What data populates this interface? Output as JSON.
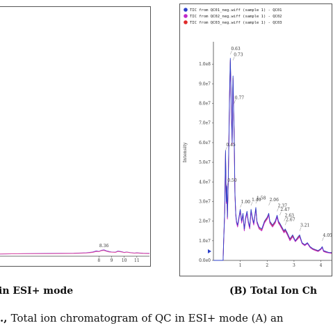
{
  "chart_data": [
    {
      "panel": "A",
      "type": "line",
      "title": "",
      "xlabel": "",
      "ylabel": "",
      "xlim": [
        0,
        12
      ],
      "ylim": [
        0,
        11
      ],
      "x_ticks": [
        8,
        9,
        10,
        11
      ],
      "peak_labels": [
        {
          "x": 8.4,
          "y": 0.35,
          "text": "8.36"
        }
      ],
      "series": [
        {
          "color": "#7a3fd6",
          "x": [
            0,
            2,
            4,
            6,
            7.0,
            7.5,
            7.8,
            8.0,
            8.2,
            8.4,
            8.6,
            8.8,
            9.0,
            9.3,
            9.5,
            9.8,
            10.0,
            10.2,
            10.5,
            10.8,
            11.0,
            11.5,
            12
          ],
          "y": [
            0.1,
            0.12,
            0.13,
            0.14,
            0.16,
            0.2,
            0.25,
            0.22,
            0.28,
            0.3,
            0.25,
            0.22,
            0.2,
            0.19,
            0.24,
            0.21,
            0.18,
            0.2,
            0.17,
            0.15,
            0.16,
            0.14,
            0.13
          ]
        },
        {
          "color": "#e0459a",
          "x": [
            0,
            2,
            4,
            6,
            7.0,
            7.5,
            7.8,
            8.0,
            8.2,
            8.4,
            8.6,
            8.8,
            9.0,
            9.3,
            9.5,
            9.8,
            10.0,
            10.2,
            10.5,
            10.8,
            11.0,
            11.5,
            12
          ],
          "y": [
            0.1,
            0.12,
            0.12,
            0.13,
            0.15,
            0.18,
            0.22,
            0.21,
            0.26,
            0.27,
            0.23,
            0.2,
            0.19,
            0.18,
            0.22,
            0.2,
            0.17,
            0.19,
            0.16,
            0.14,
            0.15,
            0.13,
            0.12
          ]
        }
      ]
    },
    {
      "panel": "B",
      "type": "line",
      "title": "",
      "xlabel": "",
      "ylabel": "Intensity",
      "xlim": [
        0,
        4.4
      ],
      "ylim": [
        0,
        110000000.0
      ],
      "y_tick_labels": [
        "0.0e0",
        "1.0e7",
        "2.0e7",
        "3.0e7",
        "4.0e7",
        "5.0e7",
        "6.0e7",
        "7.0e7",
        "8.0e7",
        "9.0e7",
        "1.0e8"
      ],
      "y_tick_values": [
        0,
        10000000.0,
        20000000.0,
        30000000.0,
        40000000.0,
        50000000.0,
        60000000.0,
        70000000.0,
        80000000.0,
        90000000.0,
        100000000.0
      ],
      "x_tick_labels": [
        "1",
        "2",
        "3",
        "4"
      ],
      "x_tick_values": [
        1,
        2,
        3,
        4
      ],
      "legend": [
        {
          "text": "TIC from QC01_neg.wiff (sample 1) - QC01",
          "color": "#2b3fc9"
        },
        {
          "text": "TIC from QC02_neg.wiff (sample 1) - QC02",
          "color": "#c028c9"
        },
        {
          "text": "TIC from QC03_neg.wiff (sample 1) - QC03",
          "color": "#e02a2a"
        }
      ],
      "peak_labels": [
        {
          "x": 0.63,
          "y": 105000000.0,
          "text": "0.63"
        },
        {
          "x": 0.73,
          "y": 102000000.0,
          "text": "0.73"
        },
        {
          "x": 0.77,
          "y": 80000000.0,
          "text": "0.77"
        },
        {
          "x": 0.45,
          "y": 56000000.0,
          "text": "0.45"
        },
        {
          "x": 0.5,
          "y": 38000000.0,
          "text": "0.50"
        },
        {
          "x": 1.0,
          "y": 27000000.0,
          "text": "1.00"
        },
        {
          "x": 1.4,
          "y": 28000000.0,
          "text": "1.40"
        },
        {
          "x": 1.58,
          "y": 29000000.0,
          "text": "1.58"
        },
        {
          "x": 2.06,
          "y": 28000000.0,
          "text": "2.06"
        },
        {
          "x": 2.37,
          "y": 25000000.0,
          "text": "2.37"
        },
        {
          "x": 2.47,
          "y": 23000000.0,
          "text": "2.47"
        },
        {
          "x": 2.63,
          "y": 20000000.0,
          "text": "2.63"
        },
        {
          "x": 2.67,
          "y": 18000000.0,
          "text": "2.67"
        },
        {
          "x": 3.21,
          "y": 15000000.0,
          "text": "3.21"
        },
        {
          "x": 4.05,
          "y": 10000000.0,
          "text": "4.05"
        }
      ],
      "series": [
        {
          "name": "QC01",
          "color": "#2b3fc9",
          "x": [
            0,
            0.3,
            0.36,
            0.38,
            0.42,
            0.45,
            0.48,
            0.5,
            0.52,
            0.55,
            0.58,
            0.6,
            0.62,
            0.63,
            0.65,
            0.67,
            0.7,
            0.72,
            0.73,
            0.75,
            0.77,
            0.8,
            0.83,
            0.86,
            0.9,
            0.95,
            1.0,
            1.05,
            1.1,
            1.15,
            1.2,
            1.25,
            1.3,
            1.35,
            1.4,
            1.45,
            1.5,
            1.55,
            1.58,
            1.62,
            1.7,
            1.8,
            1.9,
            2.0,
            2.06,
            2.1,
            2.2,
            2.3,
            2.37,
            2.42,
            2.47,
            2.55,
            2.63,
            2.67,
            2.75,
            2.85,
            2.95,
            3.05,
            3.15,
            3.21,
            3.3,
            3.4,
            3.5,
            3.6,
            3.7,
            3.8,
            3.9,
            4.0,
            4.05,
            4.1,
            4.2,
            4.3,
            4.4
          ],
          "y": [
            0,
            0,
            0,
            10000000.0,
            25000000.0,
            56000000.0,
            30000000.0,
            38000000.0,
            22000000.0,
            40000000.0,
            65000000.0,
            85000000.0,
            98000000.0,
            103000000.0,
            90000000.0,
            75000000.0,
            60000000.0,
            88000000.0,
            94000000.0,
            78000000.0,
            65000000.0,
            35000000.0,
            24000000.0,
            20000000.0,
            18000000.0,
            22000000.0,
            26000000.0,
            20000000.0,
            24000000.0,
            16000000.0,
            22000000.0,
            25000000.0,
            20000000.0,
            17000000.0,
            26000000.0,
            22000000.0,
            19000000.0,
            24000000.0,
            27000000.0,
            20000000.0,
            17000000.0,
            16000000.0,
            20000000.0,
            22000000.0,
            24000000.0,
            20000000.0,
            18000000.0,
            20000000.0,
            23000000.0,
            20000000.0,
            19000000.0,
            17000000.0,
            15000000.0,
            16000000.0,
            14000000.0,
            11000000.0,
            13000000.0,
            10000000.0,
            12000000.0,
            13000000.0,
            9000000.0,
            8000000.0,
            9000000.0,
            7000000.0,
            6000000.0,
            5500000.0,
            5000000.0,
            6000000.0,
            7000000.0,
            5000000.0,
            4500000.0,
            4000000.0,
            4000000.0
          ]
        },
        {
          "name": "QC02",
          "color": "#c028c9",
          "x": [
            0,
            0.3,
            0.36,
            0.38,
            0.42,
            0.45,
            0.48,
            0.5,
            0.52,
            0.55,
            0.58,
            0.6,
            0.62,
            0.63,
            0.65,
            0.67,
            0.7,
            0.72,
            0.73,
            0.75,
            0.77,
            0.8,
            0.83,
            0.86,
            0.9,
            0.95,
            1.0,
            1.05,
            1.1,
            1.15,
            1.2,
            1.25,
            1.3,
            1.35,
            1.4,
            1.45,
            1.5,
            1.55,
            1.58,
            1.62,
            1.7,
            1.8,
            1.9,
            2.0,
            2.06,
            2.1,
            2.2,
            2.3,
            2.37,
            2.42,
            2.47,
            2.55,
            2.63,
            2.67,
            2.75,
            2.85,
            2.95,
            3.05,
            3.15,
            3.21,
            3.3,
            3.4,
            3.5,
            3.6,
            3.7,
            3.8,
            3.9,
            4.0,
            4.05,
            4.1,
            4.2,
            4.3,
            4.4
          ],
          "y": [
            0,
            0,
            0,
            9000000.0,
            24000000.0,
            54000000.0,
            29000000.0,
            37000000.0,
            21000000.0,
            39000000.0,
            63000000.0,
            83000000.0,
            96000000.0,
            101000000.0,
            88000000.0,
            73000000.0,
            59000000.0,
            86000000.0,
            92000000.0,
            76000000.0,
            64000000.0,
            34000000.0,
            23000000.0,
            19000000.0,
            17000000.0,
            21000000.0,
            25000000.0,
            19000000.0,
            23000000.0,
            15000000.0,
            21000000.0,
            24000000.0,
            19000000.0,
            16000000.0,
            25000000.0,
            21000000.0,
            18000000.0,
            23000000.0,
            26000000.0,
            19000000.0,
            16000000.0,
            15000000.0,
            19000000.0,
            21000000.0,
            23000000.0,
            19000000.0,
            17000000.0,
            19000000.0,
            22000000.0,
            19000000.0,
            18000000.0,
            16000000.0,
            14000000.0,
            15000000.0,
            13000000.0,
            10000000.0,
            12000000.0,
            9500000.0,
            11000000.0,
            12000000.0,
            8500000.0,
            7500000.0,
            8500000.0,
            6500000.0,
            5500000.0,
            5000000.0,
            4500000.0,
            5500000.0,
            6500000.0,
            4500000.0,
            4000000.0,
            3800000.0,
            3600000.0
          ]
        },
        {
          "name": "QC03",
          "color": "#e02a2a",
          "x": [
            0,
            0.3,
            0.36,
            0.38,
            0.42,
            0.45,
            0.48,
            0.5,
            0.52,
            0.55,
            0.58,
            0.6,
            0.62,
            0.63,
            0.65,
            0.67,
            0.7,
            0.72,
            0.73,
            0.75,
            0.77,
            0.8,
            0.83,
            0.86,
            0.9,
            0.95,
            1.0,
            1.05,
            1.1,
            1.15,
            1.2,
            1.25,
            1.3,
            1.35,
            1.4,
            1.45,
            1.5,
            1.55,
            1.58,
            1.62,
            1.7,
            1.8,
            1.9,
            2.0,
            2.06,
            2.1,
            2.2,
            2.3,
            2.37,
            2.42,
            2.47,
            2.55,
            2.63,
            2.67,
            2.75,
            2.85,
            2.95,
            3.05,
            3.15,
            3.21,
            3.3,
            3.4,
            3.5,
            3.6,
            3.7,
            3.8,
            3.9,
            4.0,
            4.05,
            4.1,
            4.2,
            4.3,
            4.4
          ],
          "y": [
            0,
            0,
            0,
            9500000.0,
            24500000.0,
            55000000.0,
            29500000.0,
            37500000.0,
            21500000.0,
            39500000.0,
            64000000.0,
            84000000.0,
            97000000.0,
            102000000.0,
            89000000.0,
            74000000.0,
            59500000.0,
            87000000.0,
            93000000.0,
            77000000.0,
            66000000.0,
            34500000.0,
            23500000.0,
            19500000.0,
            17500000.0,
            21500000.0,
            25500000.0,
            19500000.0,
            23500000.0,
            15500000.0,
            21500000.0,
            24500000.0,
            19500000.0,
            16500000.0,
            25500000.0,
            21500000.0,
            18500000.0,
            23500000.0,
            26500000.0,
            19500000.0,
            16500000.0,
            15500000.0,
            19500000.0,
            21500000.0,
            23500000.0,
            19500000.0,
            17500000.0,
            19500000.0,
            22500000.0,
            19500000.0,
            18500000.0,
            16500000.0,
            14500000.0,
            15500000.0,
            13500000.0,
            10500000.0,
            12500000.0,
            9800000.0,
            11500000.0,
            12500000.0,
            8800000.0,
            7800000.0,
            8800000.0,
            6800000.0,
            5800000.0,
            5200000.0,
            4800000.0,
            5800000.0,
            6800000.0,
            4800000.0,
            4200000.0,
            3900000.0,
            3800000.0
          ]
        }
      ]
    }
  ],
  "labels": {
    "panel_a": "in ESI+ mode",
    "panel_b": "(B) Total Ion Ch"
  },
  "caption": {
    "prefix": "., ",
    "text": "Total ion chromatogram of QC in ESI+ mode (A) an"
  }
}
